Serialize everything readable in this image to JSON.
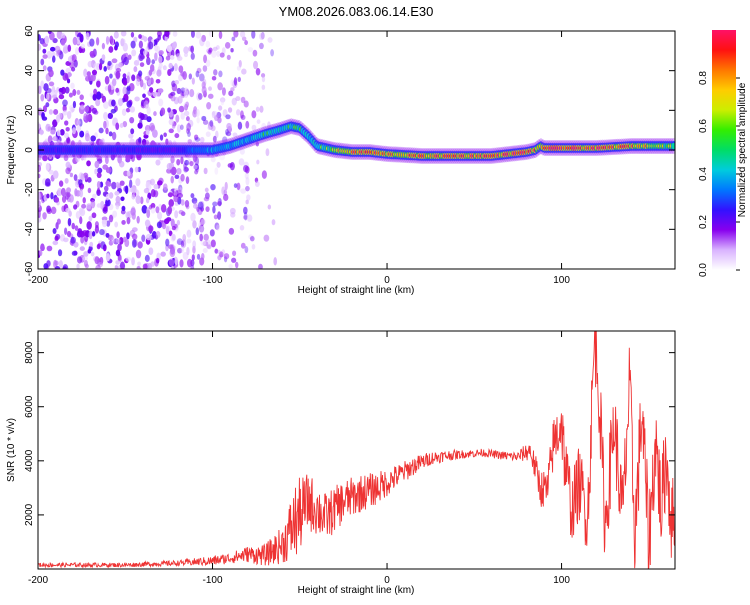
{
  "figure_title": "YM08.2026.083.06.14.E30",
  "chart_data": [
    {
      "type": "heatmap",
      "title": "YM08.2026.083.06.14.E30",
      "xlabel": "Height of straight line (km)",
      "ylabel": "Frequency (Hz)",
      "xlim": [
        -200,
        165
      ],
      "ylim": [
        -60,
        60
      ],
      "x_ticks": [
        -200,
        -100,
        0,
        100
      ],
      "y_ticks": [
        -60,
        -40,
        -20,
        0,
        20,
        40,
        60
      ],
      "colorbar": {
        "label": "Normalized spectral amplitude",
        "range": [
          0,
          1
        ],
        "ticks": [
          0.0,
          0.2,
          0.4,
          0.6,
          0.8
        ],
        "tick_labels": [
          "0.0",
          "0.2",
          "0.4",
          "0.6",
          "0.8"
        ],
        "colormap": [
          "#ffffff",
          "#d9b3ff",
          "#8800ee",
          "#3311ff",
          "#0077ff",
          "#00ccdd",
          "#00dd66",
          "#33ee00",
          "#ccee00",
          "#ffcc00",
          "#ff7700",
          "#ff1111",
          "#ff1166"
        ]
      },
      "noise_region": {
        "x_range": [
          -200,
          -65
        ],
        "amplitude": 0.12
      },
      "ridge": {
        "x": [
          -200,
          -180,
          -160,
          -140,
          -120,
          -110,
          -100,
          -90,
          -80,
          -70,
          -62,
          -55,
          -50,
          -45,
          -40,
          -30,
          -20,
          -10,
          0,
          20,
          40,
          60,
          80,
          85,
          88,
          90,
          95,
          100,
          120,
          140,
          165
        ],
        "frequency": [
          0,
          0,
          0,
          0,
          0,
          0,
          0,
          2,
          5,
          8,
          10,
          12,
          11,
          7,
          2,
          0,
          -1,
          -1,
          -2,
          -3,
          -3,
          -3,
          -1,
          0,
          2,
          1,
          1,
          1,
          1,
          2,
          2
        ],
        "amplitude": [
          0.22,
          0.25,
          0.25,
          0.22,
          0.2,
          0.35,
          0.4,
          0.42,
          0.45,
          0.5,
          0.5,
          0.55,
          0.5,
          0.45,
          0.5,
          0.65,
          0.8,
          0.85,
          0.75,
          0.8,
          0.85,
          0.85,
          0.9,
          0.8,
          0.6,
          0.9,
          0.95,
          0.9,
          0.85,
          0.8,
          0.6
        ]
      }
    },
    {
      "type": "line",
      "xlabel": "Height of straight line (km)",
      "ylabel": "SNR (10 * v/v)",
      "xlim": [
        -200,
        165
      ],
      "ylim": [
        0,
        8800
      ],
      "x_ticks": [
        -200,
        -100,
        0,
        100
      ],
      "y_ticks": [
        2000,
        4000,
        6000,
        8000
      ],
      "line_color": "#ee3333",
      "series": [
        {
          "name": "SNR",
          "x": [
            -200,
            -150,
            -120,
            -100,
            -90,
            -80,
            -70,
            -60,
            -52,
            -45,
            -35,
            -25,
            -15,
            -5,
            5,
            15,
            25,
            35,
            45,
            55,
            65,
            75,
            82,
            88,
            92,
            95,
            100,
            102,
            106,
            110,
            115,
            119,
            121,
            125,
            130,
            135,
            139,
            142,
            146,
            150,
            154,
            157,
            160,
            163
          ],
          "y": [
            150,
            150,
            220,
            300,
            400,
            550,
            500,
            900,
            1800,
            2500,
            1900,
            2500,
            2800,
            3000,
            3400,
            3800,
            4100,
            4200,
            4250,
            4300,
            4200,
            4150,
            4400,
            3000,
            2900,
            4500,
            5500,
            3800,
            2200,
            3200,
            2000,
            8600,
            7200,
            1500,
            5500,
            1900,
            6800,
            1200,
            5900,
            1000,
            4800,
            2200,
            4200,
            1800
          ],
          "noise_amplitude": [
            80,
            80,
            100,
            180,
            200,
            300,
            400,
            700,
            1500,
            1100,
            900,
            800,
            700,
            600,
            450,
            350,
            250,
            200,
            150,
            150,
            150,
            200,
            400,
            700,
            800,
            1000,
            1300,
            1300,
            1300,
            1400,
            1500,
            1600,
            1600,
            1600,
            1600,
            1700,
            1700,
            1700,
            1700,
            1700,
            1700,
            1700,
            1700,
            1700
          ]
        }
      ]
    }
  ]
}
